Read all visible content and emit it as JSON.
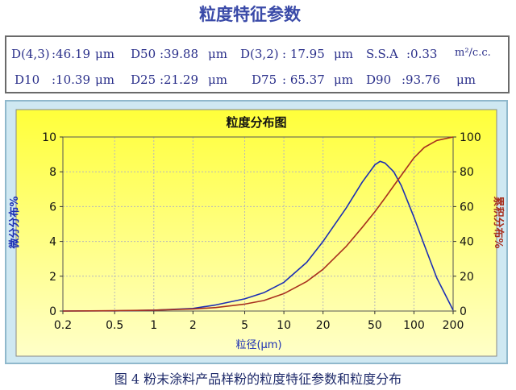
{
  "page_heading": "粒度特征参数",
  "params": {
    "row1": [
      {
        "label": "D(4,3)",
        "value": ":46.19",
        "unit": "μm"
      },
      {
        "label": "D50",
        "value": ":39.88",
        "unit": "μm"
      },
      {
        "label": "D(3,2)",
        "value": ": 17.95",
        "unit": "μm"
      },
      {
        "label": "S.S.A",
        "value": ":0.33",
        "unit": "m²/c.c."
      }
    ],
    "row2": [
      {
        "label": "D10",
        "value": ":10.39",
        "unit": "μm"
      },
      {
        "label": "D25",
        "value": ":21.29",
        "unit": "μm"
      },
      {
        "label": "D75",
        "value": ": 65.37",
        "unit": "μm"
      },
      {
        "label": "D90",
        "value": ":93.76",
        "unit": "μm"
      }
    ]
  },
  "caption": "图 4  粉末涂料产品样粉的粒度特征参数和粒度分布",
  "colors": {
    "differential": "#1c2fb4",
    "cumulative": "#a8301e",
    "plot_bg_top": "#ffff3a",
    "plot_bg_bottom": "#ffffc8",
    "frame_bg": "#cfe8f2"
  },
  "chart_data": {
    "type": "line",
    "title": "粒度分布图",
    "xlabel": "粒径(μm)",
    "ylabel": "微分分布%",
    "y2label": "累积分布%",
    "xscale": "log",
    "xlim": [
      0.2,
      200
    ],
    "xticks": [
      0.2,
      0.5,
      1,
      2,
      5,
      10,
      20,
      50,
      100,
      200
    ],
    "xtick_labels": [
      "0.2",
      "0.5",
      "1",
      "2",
      "5",
      "10",
      "20",
      "50",
      "100",
      "200"
    ],
    "ylim": [
      0,
      10
    ],
    "yticks": [
      0,
      2,
      4,
      6,
      8,
      10
    ],
    "y2lim": [
      0,
      100
    ],
    "y2ticks": [
      0,
      20,
      40,
      60,
      80,
      100
    ],
    "grid": true,
    "series": [
      {
        "axis": "left",
        "x": [
          0.2,
          0.5,
          1,
          2,
          3,
          5,
          7,
          10,
          15,
          20,
          30,
          40,
          50,
          55,
          60,
          70,
          80,
          100,
          120,
          150,
          200
        ],
        "y": [
          0,
          0.01,
          0.05,
          0.15,
          0.35,
          0.7,
          1.05,
          1.65,
          2.8,
          4.0,
          5.9,
          7.4,
          8.4,
          8.6,
          8.5,
          8.0,
          7.2,
          5.4,
          3.8,
          1.9,
          0.05
        ]
      },
      {
        "axis": "right",
        "x": [
          0.2,
          0.5,
          1,
          2,
          3,
          5,
          7,
          10,
          15,
          20,
          30,
          40,
          50,
          60,
          70,
          80,
          100,
          120,
          150,
          200
        ],
        "y": [
          0,
          0.2,
          0.5,
          1.2,
          2.0,
          4.0,
          6.0,
          10.0,
          17.0,
          24.0,
          37.0,
          48.0,
          57.0,
          65.0,
          72.0,
          78.0,
          88.0,
          94.0,
          98.0,
          100.0
        ]
      }
    ]
  }
}
